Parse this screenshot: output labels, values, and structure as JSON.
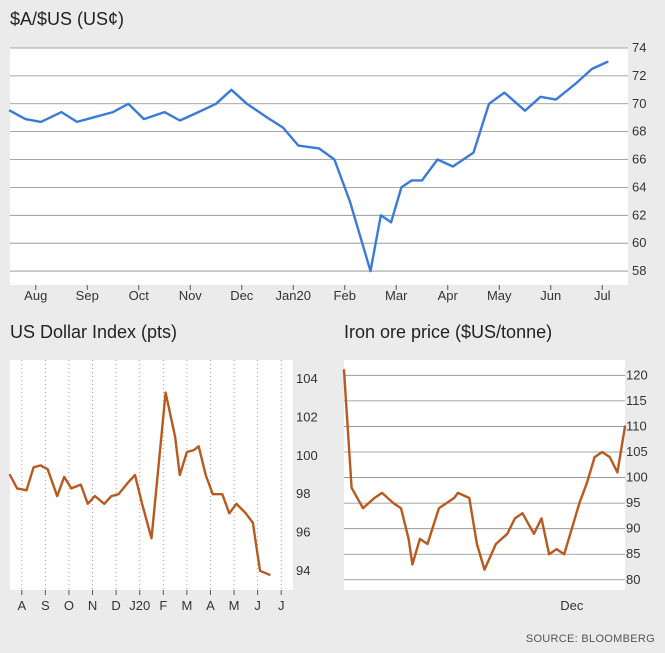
{
  "source": "SOURCE: BLOOMBERG",
  "chart_data": [
    {
      "type": "line",
      "title": "$A/$US (US¢)",
      "xlabel": "",
      "ylabel": "",
      "ylim": [
        57,
        74
      ],
      "yticks": [
        58,
        60,
        62,
        64,
        66,
        68,
        70,
        72,
        74
      ],
      "xticks": [
        "Aug",
        "Sep",
        "Oct",
        "Nov",
        "Dec",
        "Jan20",
        "Feb",
        "Mar",
        "Apr",
        "May",
        "Jun",
        "Jul"
      ],
      "color": "#3b7bd8",
      "grid": "horizontal",
      "series": [
        {
          "name": "",
          "x": [
            0,
            0.3,
            0.6,
            1.0,
            1.3,
            1.6,
            2.0,
            2.3,
            2.6,
            3.0,
            3.3,
            3.6,
            4.0,
            4.3,
            4.6,
            5.0,
            5.3,
            5.6,
            6.0,
            6.3,
            6.6,
            7.0,
            7.2,
            7.4,
            7.6,
            7.8,
            8.0,
            8.3,
            8.6,
            9.0,
            9.3,
            9.6,
            10.0,
            10.3,
            10.6,
            11.0,
            11.3,
            11.6
          ],
          "values": [
            69.5,
            68.9,
            68.7,
            69.4,
            68.7,
            69.0,
            69.4,
            70.0,
            68.9,
            69.4,
            68.8,
            69.3,
            70.0,
            71.0,
            70.0,
            69.0,
            68.3,
            67.0,
            66.8,
            66.0,
            63.0,
            58.0,
            62.0,
            61.5,
            64.0,
            64.5,
            64.5,
            66.0,
            65.5,
            66.5,
            70.0,
            70.8,
            69.5,
            70.5,
            70.3,
            71.5,
            72.5,
            73.0
          ]
        }
      ]
    },
    {
      "type": "line",
      "title": "US Dollar Index (pts)",
      "xlabel": "",
      "ylabel": "",
      "ylim": [
        93,
        105
      ],
      "yticks": [
        94,
        96,
        98,
        100,
        102,
        104
      ],
      "xticks": [
        "A",
        "S",
        "O",
        "N",
        "D",
        "J20",
        "F",
        "M",
        "A",
        "M",
        "J",
        "J"
      ],
      "color": "#b85a1f",
      "grid": "vertical",
      "series": [
        {
          "name": "",
          "x": [
            0,
            0.3,
            0.7,
            1.0,
            1.3,
            1.6,
            2.0,
            2.3,
            2.6,
            3.0,
            3.3,
            3.6,
            4.0,
            4.3,
            4.6,
            5.0,
            5.3,
            5.6,
            6.0,
            6.3,
            6.6,
            7.0,
            7.2,
            7.5,
            7.8,
            8.0,
            8.3,
            8.6,
            9.0,
            9.3,
            9.6,
            10.0,
            10.3,
            10.6,
            11.0
          ],
          "values": [
            99.0,
            98.3,
            98.2,
            99.4,
            99.5,
            99.3,
            97.9,
            98.9,
            98.3,
            98.5,
            97.5,
            97.9,
            97.5,
            97.9,
            98.0,
            98.6,
            99.0,
            97.5,
            95.7,
            99.5,
            103.3,
            101.0,
            99.0,
            100.2,
            100.3,
            100.5,
            99.0,
            98.0,
            98.0,
            97.0,
            97.5,
            97.0,
            96.5,
            94.0,
            93.8
          ]
        }
      ]
    },
    {
      "type": "line",
      "title": "Iron ore price ($US/tonne)",
      "xlabel": "",
      "ylabel": "",
      "ylim": [
        78,
        123
      ],
      "yticks": [
        80,
        85,
        90,
        95,
        100,
        105,
        110,
        115,
        120
      ],
      "xticks": [
        "Dec"
      ],
      "color": "#b85a1f",
      "grid": "horizontal",
      "series": [
        {
          "name": "",
          "x": [
            0,
            0.2,
            0.5,
            0.8,
            1.0,
            1.3,
            1.5,
            1.7,
            1.8,
            2.0,
            2.2,
            2.5,
            2.7,
            2.9,
            3.0,
            3.3,
            3.5,
            3.7,
            4.0,
            4.3,
            4.5,
            4.7,
            5.0,
            5.2,
            5.4,
            5.6,
            5.8,
            6.0,
            6.2,
            6.4,
            6.6,
            6.8,
            7.0,
            7.2,
            7.4
          ],
          "values": [
            121,
            98,
            94,
            96,
            97,
            95,
            94,
            88,
            83,
            88,
            87,
            94,
            95,
            96,
            97,
            96,
            87,
            82,
            87,
            89,
            92,
            93,
            89,
            92,
            85,
            86,
            85,
            90,
            95,
            99,
            104,
            105,
            104,
            101,
            110
          ]
        }
      ]
    }
  ]
}
